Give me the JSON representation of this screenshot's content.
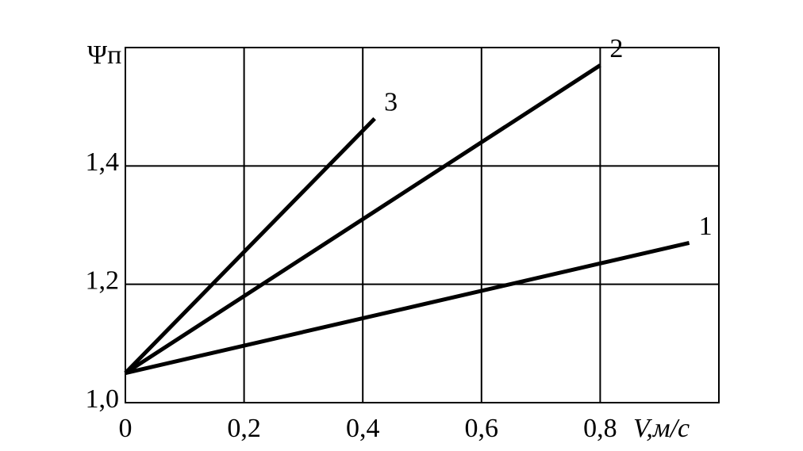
{
  "chart_data": {
    "type": "line",
    "ylabel": "Ψп",
    "xlabel": "V,м/с",
    "series": [
      {
        "name": "1",
        "color": "#000000",
        "x": [
          0,
          0.95
        ],
        "values": [
          1.05,
          1.27
        ]
      },
      {
        "name": "2",
        "color": "#000000",
        "x": [
          0,
          0.8
        ],
        "values": [
          1.05,
          1.57
        ]
      },
      {
        "name": "3",
        "color": "#000000",
        "x": [
          0,
          0.42
        ],
        "values": [
          1.05,
          1.48
        ]
      }
    ],
    "xlim": [
      0,
      1.0
    ],
    "ylim": [
      1.0,
      1.6
    ],
    "xticks": [
      0,
      {
        "value": 0.2,
        "label": "0,2"
      },
      {
        "value": 0.4,
        "label": "0,4"
      },
      {
        "value": 0.6,
        "label": "0,6"
      },
      {
        "value": 0.8,
        "label": "0,8"
      }
    ],
    "yticks": [
      {
        "value": 1.0,
        "label": "1,0"
      },
      {
        "value": 1.2,
        "label": "1,2"
      },
      {
        "value": 1.4,
        "label": "1,4"
      }
    ],
    "grid": true
  }
}
